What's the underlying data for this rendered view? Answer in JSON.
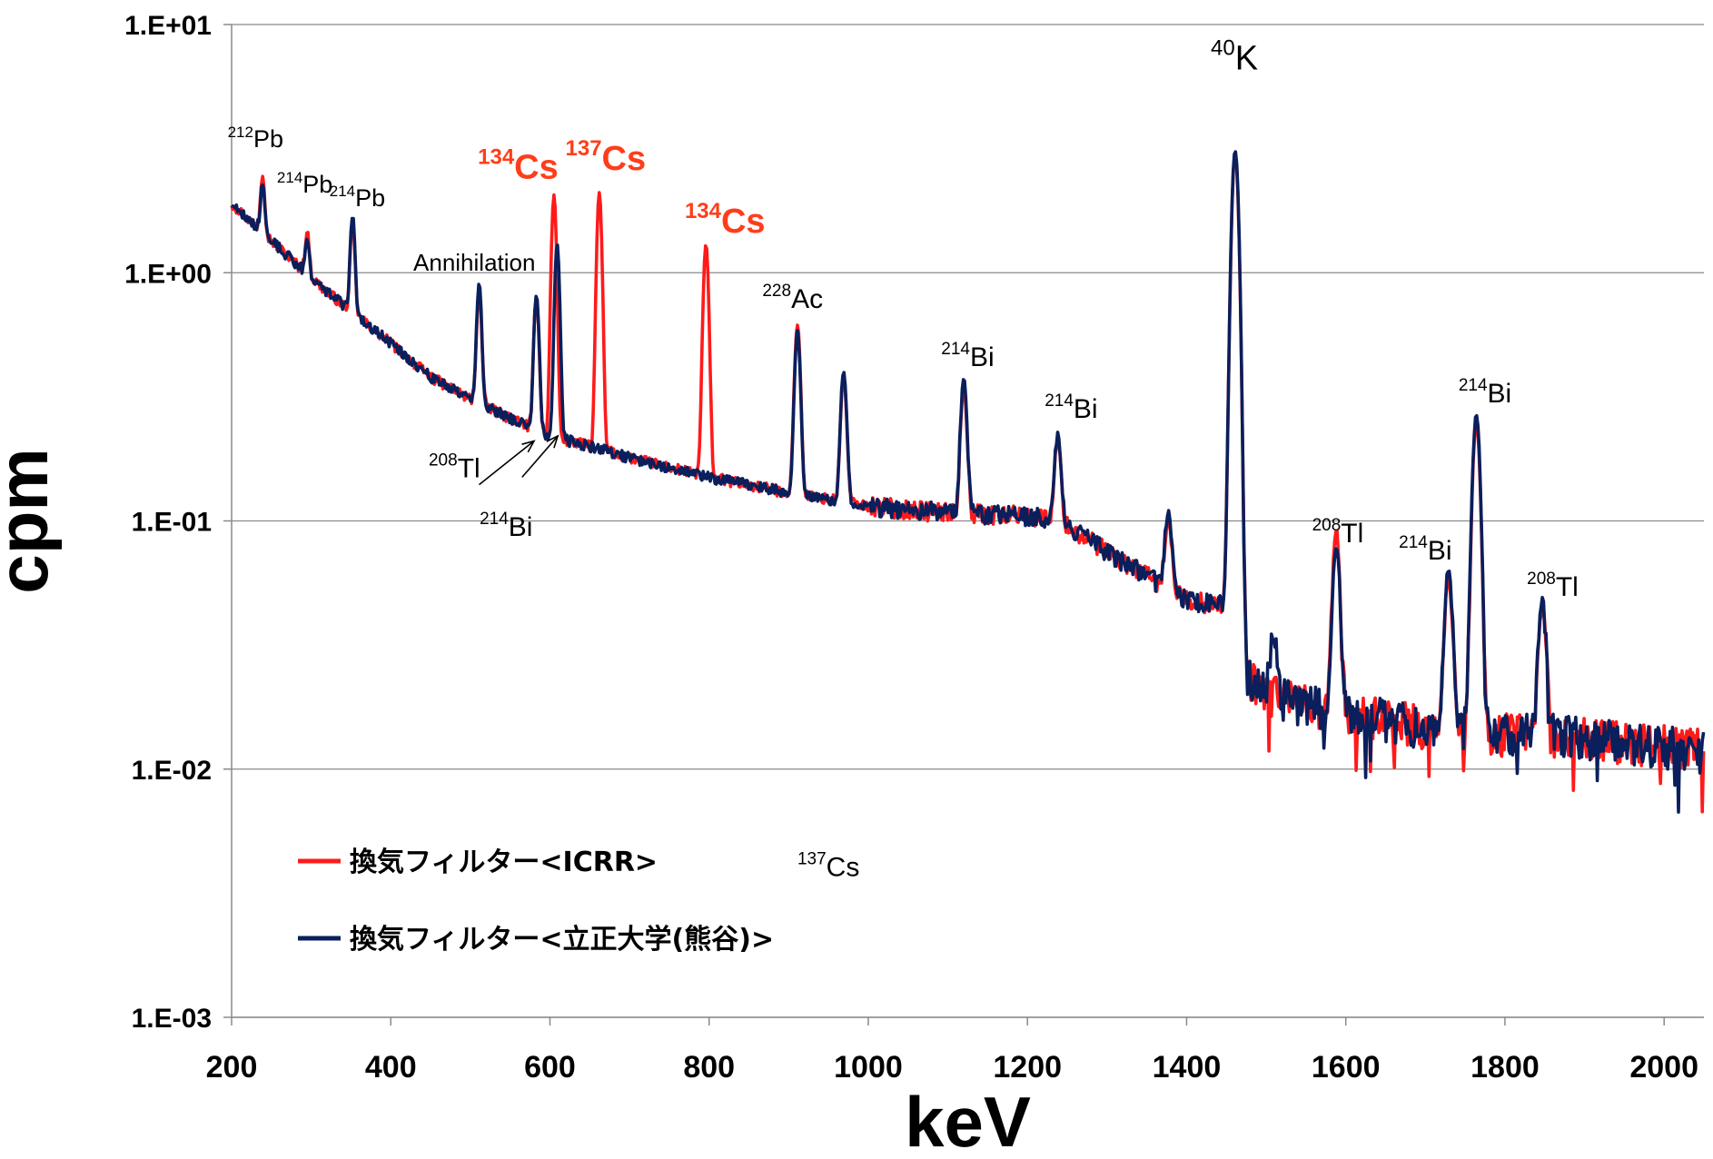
{
  "chart_data": {
    "type": "line",
    "title": "",
    "xlabel": "keV",
    "ylabel": "cpm",
    "xlim": [
      200,
      2050
    ],
    "ylim": [
      0.001,
      10
    ],
    "yscale": "log",
    "grid": {
      "y": true,
      "x": false
    },
    "legend_position": "bottom-left",
    "x_ticks": [
      200,
      400,
      600,
      800,
      1000,
      1200,
      1400,
      1600,
      1800,
      2000
    ],
    "y_ticks": [
      {
        "value": 10,
        "label": "1.E+01"
      },
      {
        "value": 1,
        "label": "1.E+00"
      },
      {
        "value": 0.1,
        "label": "1.E-01"
      },
      {
        "value": 0.01,
        "label": "1.E-02"
      },
      {
        "value": 0.001,
        "label": "1.E-03"
      }
    ],
    "continuum": [
      [
        200,
        1.9
      ],
      [
        250,
        1.35
      ],
      [
        300,
        0.95
      ],
      [
        350,
        0.7
      ],
      [
        400,
        0.52
      ],
      [
        450,
        0.38
      ],
      [
        500,
        0.31
      ],
      [
        550,
        0.26
      ],
      [
        600,
        0.22
      ],
      [
        650,
        0.2
      ],
      [
        700,
        0.18
      ],
      [
        800,
        0.15
      ],
      [
        900,
        0.13
      ],
      [
        1000,
        0.115
      ],
      [
        1100,
        0.108
      ],
      [
        1200,
        0.105
      ],
      [
        1240,
        0.1
      ],
      [
        1300,
        0.075
      ],
      [
        1400,
        0.048
      ],
      [
        1460,
        0.045
      ],
      [
        1470,
        0.024
      ],
      [
        1500,
        0.02
      ],
      [
        1600,
        0.017
      ],
      [
        1700,
        0.015
      ],
      [
        1800,
        0.014
      ],
      [
        1900,
        0.0135
      ],
      [
        2000,
        0.0125
      ],
      [
        2050,
        0.012
      ]
    ],
    "series": [
      {
        "name": "換気フィルター<ICRR>",
        "color": "#ff1a1a",
        "peaks": [
          [
            239,
            2.5
          ],
          [
            295,
            1.45
          ],
          [
            352,
            1.6
          ],
          [
            511,
            0.85
          ],
          [
            583,
            0.8
          ],
          [
            605,
            2.05
          ],
          [
            662,
            2.1
          ],
          [
            796,
            1.3
          ],
          [
            911,
            0.62
          ],
          [
            969,
            0.38
          ],
          [
            1120,
            0.35
          ],
          [
            1238,
            0.21
          ],
          [
            1377,
            0.1
          ],
          [
            1461,
            3.0
          ],
          [
            1588,
            0.09
          ],
          [
            1729,
            0.06
          ],
          [
            1764,
            0.25
          ],
          [
            1847,
            0.045
          ]
        ]
      },
      {
        "name": "換気フィルター<立正大学(熊谷)>",
        "color": "#0a1f5c",
        "peaks": [
          [
            239,
            2.3
          ],
          [
            295,
            1.35
          ],
          [
            352,
            1.7
          ],
          [
            511,
            0.9
          ],
          [
            583,
            0.82
          ],
          [
            609,
            1.3
          ],
          [
            911,
            0.58
          ],
          [
            969,
            0.4
          ],
          [
            1120,
            0.38
          ],
          [
            1238,
            0.22
          ],
          [
            1377,
            0.11
          ],
          [
            1461,
            3.1
          ],
          [
            1509,
            0.035
          ],
          [
            1588,
            0.08
          ],
          [
            1729,
            0.065
          ],
          [
            1764,
            0.27
          ],
          [
            1847,
            0.048
          ]
        ]
      }
    ],
    "annotations": [
      {
        "mass": "212",
        "symbol": "Pb",
        "x": 230,
        "y": 3.2,
        "color": "#000000",
        "bold": false,
        "size": 27
      },
      {
        "mass": "214",
        "symbol": "Pb",
        "x": 292,
        "y": 2.1,
        "color": "#000000",
        "bold": false,
        "size": 27
      },
      {
        "mass": "214",
        "symbol": "Pb",
        "x": 358,
        "y": 1.85,
        "color": "#000000",
        "bold": false,
        "size": 27
      },
      {
        "mass": "",
        "symbol": "Annihilation",
        "x": 505,
        "y": 1.02,
        "color": "#000000",
        "bold": false,
        "size": 26
      },
      {
        "mass": "134",
        "symbol": "Cs",
        "x": 560,
        "y": 2.4,
        "color": "#ff3d1a",
        "bold": true,
        "size": 38
      },
      {
        "mass": "137",
        "symbol": "Cs",
        "x": 670,
        "y": 2.6,
        "color": "#ff3d1a",
        "bold": true,
        "size": 38
      },
      {
        "mass": "134",
        "symbol": "Cs",
        "x": 820,
        "y": 1.45,
        "color": "#ff3d1a",
        "bold": true,
        "size": 38
      },
      {
        "mass": "228",
        "symbol": "Ac",
        "x": 905,
        "y": 0.72,
        "color": "#000000",
        "bold": false,
        "size": 30
      },
      {
        "mass": "40",
        "symbol": "K",
        "x": 1460,
        "y": 6.6,
        "color": "#000000",
        "bold": false,
        "size": 38
      },
      {
        "mass": "214",
        "symbol": "Bi",
        "x": 1125,
        "y": 0.42,
        "color": "#000000",
        "bold": false,
        "size": 30
      },
      {
        "mass": "214",
        "symbol": "Bi",
        "x": 1255,
        "y": 0.26,
        "color": "#000000",
        "bold": false,
        "size": 30
      },
      {
        "mass": "214",
        "symbol": "Bi",
        "x": 1775,
        "y": 0.3,
        "color": "#000000",
        "bold": false,
        "size": 30
      },
      {
        "mass": "214",
        "symbol": "Bi",
        "x": 1700,
        "y": 0.07,
        "color": "#000000",
        "bold": false,
        "size": 30
      },
      {
        "mass": "208",
        "symbol": "Tl",
        "x": 1590,
        "y": 0.082,
        "color": "#000000",
        "bold": false,
        "size": 30
      },
      {
        "mass": "208",
        "symbol": "Tl",
        "x": 1860,
        "y": 0.05,
        "color": "#000000",
        "bold": false,
        "size": 30
      },
      {
        "mass": "208",
        "symbol": "Tl",
        "x": 480,
        "y": 0.15,
        "color": "#000000",
        "bold": false,
        "size": 30
      },
      {
        "mass": "214",
        "symbol": "Bi",
        "x": 545,
        "y": 0.087,
        "color": "#000000",
        "bold": false,
        "size": 30
      },
      {
        "mass": "137",
        "symbol": "Cs",
        "x": 950,
        "y": 0.0037,
        "color": "#000000",
        "bold": false,
        "size": 30
      }
    ],
    "arrows": [
      {
        "from": [
          511,
          0.14
        ],
        "to": [
          580,
          0.21
        ]
      },
      {
        "from": [
          565,
          0.15
        ],
        "to": [
          610,
          0.22
        ]
      }
    ]
  }
}
